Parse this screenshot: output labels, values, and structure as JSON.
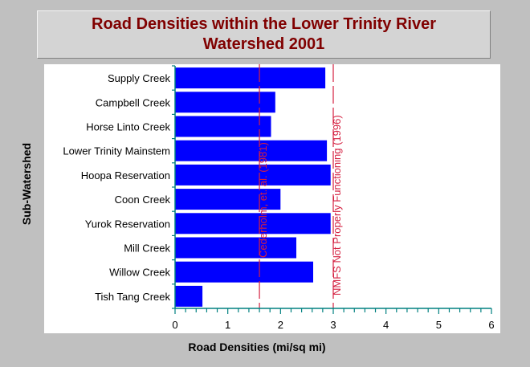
{
  "chart_data": {
    "type": "bar",
    "orientation": "horizontal",
    "title_lines": [
      "Road Densities within the Lower Trinity River",
      "Watershed 2001"
    ],
    "xlabel": "Road Densities (mi/sq mi)",
    "ylabel": "Sub-Watershed",
    "xlim": [
      0,
      6
    ],
    "xticks": [
      "0",
      "1",
      "2",
      "3",
      "4",
      "5",
      "6"
    ],
    "categories": [
      "Supply Creek",
      "Campbell Creek",
      "Horse Linto Creek",
      "Lower Trinity Mainstem",
      "Hoopa Reservation",
      "Coon Creek",
      "Yurok Reservation",
      "Mill Creek",
      "Willow Creek",
      "Tish Tang Creek"
    ],
    "values": [
      2.85,
      1.9,
      1.82,
      2.88,
      2.95,
      2.0,
      2.95,
      2.3,
      2.62,
      0.52
    ],
    "bar_color": "#0000ff",
    "reference_lines": [
      {
        "value": 1.6,
        "label": "Cederholm, et. al. (1981)"
      },
      {
        "value": 3.0,
        "label": "NMFS Not Properly Functioning (1996)"
      }
    ],
    "reference_color": "#d42040",
    "grid": false
  }
}
